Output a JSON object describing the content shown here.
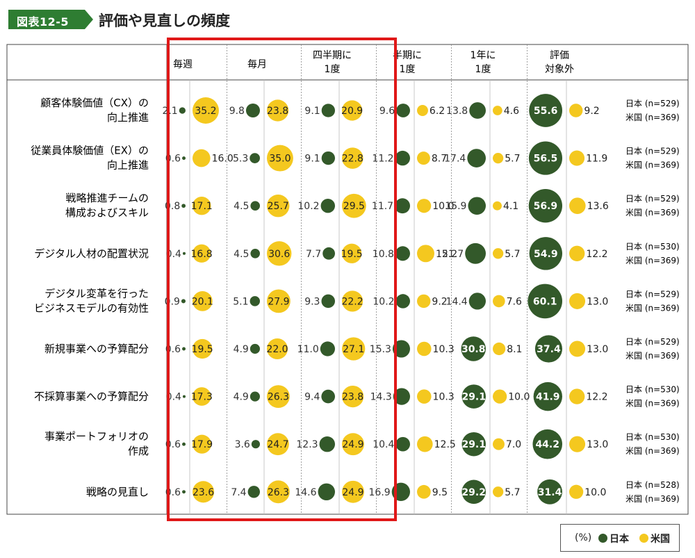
{
  "figure_label": "図表12-5",
  "title": "評価や見直しの頻度",
  "colors": {
    "japan": "#33592a",
    "us": "#f4c81f",
    "highlight": "#e01818",
    "header_green": "#2e7d32",
    "grid": "#888888"
  },
  "legend": {
    "unit": "(%)",
    "japan": "日本",
    "us": "米国"
  },
  "chart_data": {
    "type": "bubble",
    "unit": "%",
    "columns": [
      "毎週",
      "毎月",
      "四半期に\n1度",
      "半期に\n1度",
      "1年に\n1度",
      "評価\n対象外"
    ],
    "series": [
      {
        "name": "日本"
      },
      {
        "name": "米国"
      }
    ],
    "rows": [
      {
        "label": "顧客体験価値（CX）の\n向上推進",
        "n_jp": "日本 (n=529)",
        "n_us": "米国 (n=369)",
        "jp": [
          "2.1",
          "9.8",
          "9.1",
          "9.6",
          "13.8",
          "55.6"
        ],
        "us": [
          "35.2",
          "23.8",
          "20.9",
          "6.2",
          "4.6",
          "9.2"
        ]
      },
      {
        "label": "従業員体験価値（EX）の\n向上推進",
        "n_jp": "日本 (n=529)",
        "n_us": "米国 (n=369)",
        "jp": [
          "0.6",
          "5.3",
          "9.1",
          "11.2",
          "17.4",
          "56.5"
        ],
        "us": [
          "16.0",
          "35.0",
          "22.8",
          "8.7",
          "5.7",
          "11.9"
        ]
      },
      {
        "label": "戦略推進チームの\n構成およびスキル",
        "n_jp": "日本 (n=529)",
        "n_us": "米国 (n=369)",
        "jp": [
          "0.8",
          "4.5",
          "10.2",
          "11.7",
          "15.9",
          "56.9"
        ],
        "us": [
          "17.1",
          "25.7",
          "29.5",
          "10.0",
          "4.1",
          "13.6"
        ]
      },
      {
        "label": "デジタル人材の配置状況",
        "n_jp": "日本 (n=530)",
        "n_us": "米国 (n=369)",
        "jp": [
          "0.4",
          "4.5",
          "7.7",
          "10.8",
          "21.7",
          "54.9"
        ],
        "us": [
          "16.8",
          "30.6",
          "19.5",
          "15.2",
          "5.7",
          "12.2"
        ]
      },
      {
        "label": "デジタル変革を行った\nビジネスモデルの有効性",
        "n_jp": "日本 (n=529)",
        "n_us": "米国 (n=369)",
        "jp": [
          "0.9",
          "5.1",
          "9.3",
          "10.2",
          "14.4",
          "60.1"
        ],
        "us": [
          "20.1",
          "27.9",
          "22.2",
          "9.2",
          "7.6",
          "13.0"
        ]
      },
      {
        "label": "新規事業への予算配分",
        "n_jp": "日本 (n=529)",
        "n_us": "米国 (n=369)",
        "jp": [
          "0.6",
          "4.9",
          "11.0",
          "15.3",
          "30.8",
          "37.4"
        ],
        "us": [
          "19.5",
          "22.0",
          "27.1",
          "10.3",
          "8.1",
          "13.0"
        ]
      },
      {
        "label": "不採算事業への予算配分",
        "n_jp": "日本 (n=530)",
        "n_us": "米国 (n=369)",
        "jp": [
          "0.4",
          "4.9",
          "9.4",
          "14.3",
          "29.1",
          "41.9"
        ],
        "us": [
          "17.3",
          "26.3",
          "23.8",
          "10.3",
          "10.0",
          "12.2"
        ]
      },
      {
        "label": "事業ポートフォリオの\n作成",
        "n_jp": "日本 (n=530)",
        "n_us": "米国 (n=369)",
        "jp": [
          "0.6",
          "3.6",
          "12.3",
          "10.4",
          "29.1",
          "44.2"
        ],
        "us": [
          "17.9",
          "24.7",
          "24.9",
          "12.5",
          "7.0",
          "13.0"
        ]
      },
      {
        "label": "戦略の見直し",
        "n_jp": "日本 (n=528)",
        "n_us": "米国 (n=369)",
        "jp": [
          "0.6",
          "7.4",
          "14.6",
          "16.9",
          "29.2",
          "31.4"
        ],
        "us": [
          "23.6",
          "26.3",
          "24.9",
          "9.5",
          "5.7",
          "10.0"
        ]
      }
    ]
  }
}
